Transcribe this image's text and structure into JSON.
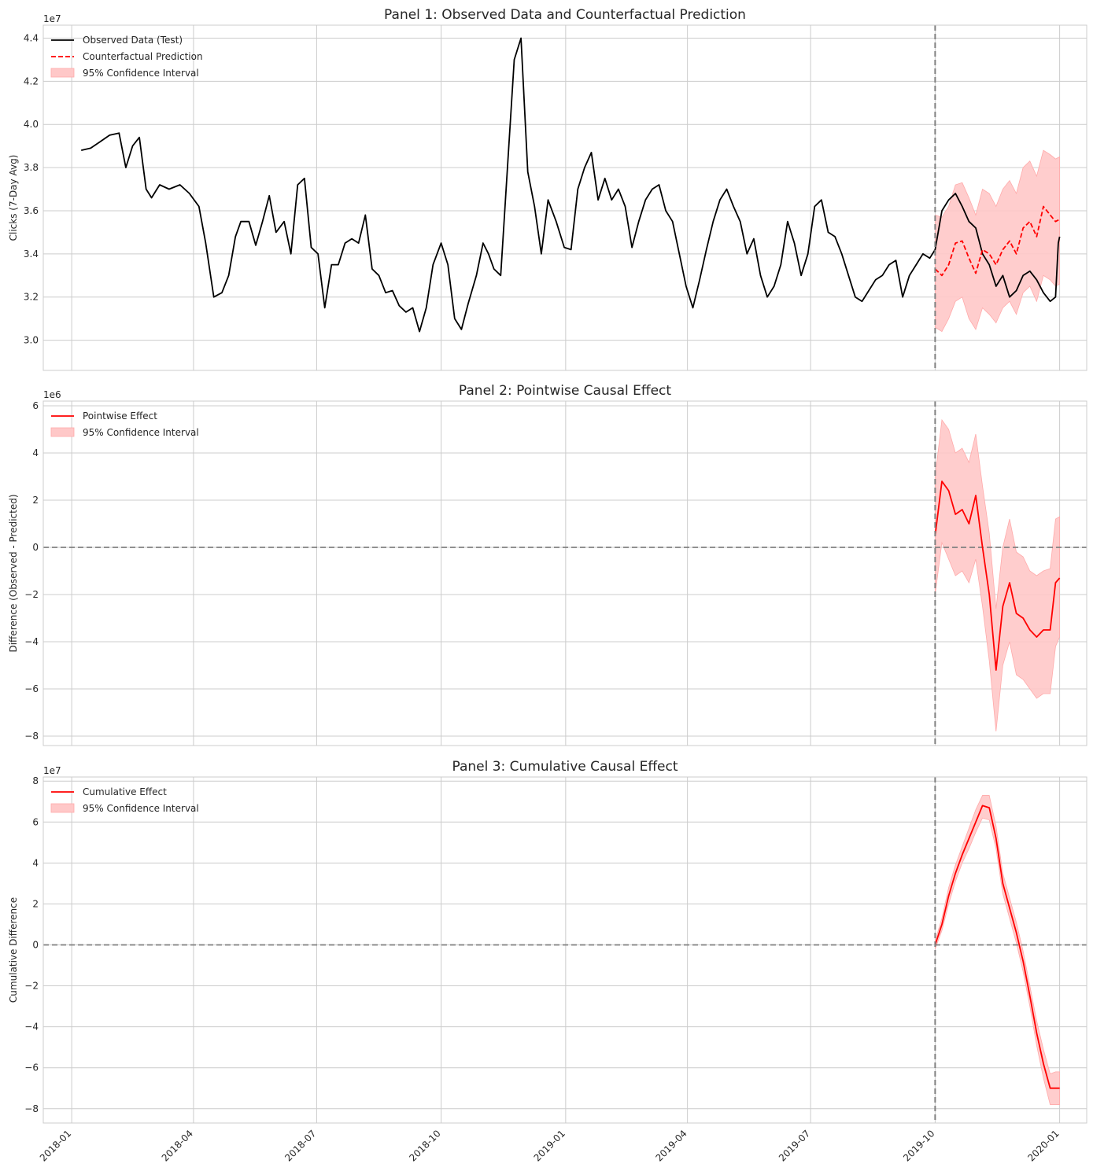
{
  "x_ticks": [
    "2018-01",
    "2018-04",
    "2018-07",
    "2018-10",
    "2019-01",
    "2019-04",
    "2019-07",
    "2019-10",
    "2020-01"
  ],
  "intervention_date": "2019-10-01",
  "chart_data": [
    {
      "type": "line",
      "title": "Panel 1: Observed Data and Counterfactual Prediction",
      "ylabel": "Clicks (7-Day Avg)",
      "scale_label": "1e7",
      "ylim": [
        2.86,
        4.46
      ],
      "yticks": [
        "3.0",
        "3.2",
        "3.4",
        "3.6",
        "3.8",
        "4.0",
        "4.2",
        "4.4"
      ],
      "ytick_values": [
        3.0,
        3.2,
        3.4,
        3.6,
        3.8,
        4.0,
        4.2,
        4.4
      ],
      "grid": true,
      "legend_position": "top-left",
      "legend": [
        "Observed Data (Test)",
        "Counterfactual Prediction",
        "95% Confidence Interval"
      ],
      "series": [
        {
          "name": "Observed Data (Test)",
          "color": "#000000",
          "style": "solid",
          "x": [
            "2018-01-08",
            "2018-01-15",
            "2018-01-22",
            "2018-01-29",
            "2018-02-05",
            "2018-02-10",
            "2018-02-15",
            "2018-02-20",
            "2018-02-25",
            "2018-03-01",
            "2018-03-07",
            "2018-03-14",
            "2018-03-22",
            "2018-03-29",
            "2018-04-05",
            "2018-04-10",
            "2018-04-16",
            "2018-04-22",
            "2018-04-27",
            "2018-05-02",
            "2018-05-06",
            "2018-05-12",
            "2018-05-17",
            "2018-05-22",
            "2018-05-27",
            "2018-06-01",
            "2018-06-07",
            "2018-06-12",
            "2018-06-17",
            "2018-06-22",
            "2018-06-27",
            "2018-07-02",
            "2018-07-07",
            "2018-07-12",
            "2018-07-17",
            "2018-07-22",
            "2018-07-27",
            "2018-08-01",
            "2018-08-06",
            "2018-08-11",
            "2018-08-16",
            "2018-08-21",
            "2018-08-26",
            "2018-08-31",
            "2018-09-05",
            "2018-09-10",
            "2018-09-15",
            "2018-09-20",
            "2018-09-25",
            "2018-10-01",
            "2018-10-06",
            "2018-10-11",
            "2018-10-16",
            "2018-10-21",
            "2018-10-27",
            "2018-11-01",
            "2018-11-05",
            "2018-11-09",
            "2018-11-14",
            "2018-11-19",
            "2018-11-24",
            "2018-11-29",
            "2018-12-04",
            "2018-12-09",
            "2018-12-14",
            "2018-12-19",
            "2018-12-25",
            "2018-12-31",
            "2019-01-05",
            "2019-01-10",
            "2019-01-15",
            "2019-01-20",
            "2019-01-25",
            "2019-01-30",
            "2019-02-04",
            "2019-02-09",
            "2019-02-14",
            "2019-02-19",
            "2019-02-24",
            "2019-03-01",
            "2019-03-06",
            "2019-03-11",
            "2019-03-16",
            "2019-03-21",
            "2019-03-26",
            "2019-03-31",
            "2019-04-05",
            "2019-04-10",
            "2019-04-15",
            "2019-04-20",
            "2019-04-25",
            "2019-04-30",
            "2019-05-05",
            "2019-05-10",
            "2019-05-15",
            "2019-05-20",
            "2019-05-25",
            "2019-05-30",
            "2019-06-04",
            "2019-06-09",
            "2019-06-14",
            "2019-06-19",
            "2019-06-24",
            "2019-06-29",
            "2019-07-04",
            "2019-07-09",
            "2019-07-14",
            "2019-07-19",
            "2019-07-24",
            "2019-07-29",
            "2019-08-03",
            "2019-08-08",
            "2019-08-13",
            "2019-08-18",
            "2019-08-23",
            "2019-08-28",
            "2019-09-02",
            "2019-09-07",
            "2019-09-12",
            "2019-09-17",
            "2019-09-22",
            "2019-09-27",
            "2019-10-01",
            "2019-10-06",
            "2019-10-11",
            "2019-10-16",
            "2019-10-21",
            "2019-10-26",
            "2019-10-31",
            "2019-11-05",
            "2019-11-10",
            "2019-11-15",
            "2019-11-20",
            "2019-11-25",
            "2019-11-30",
            "2019-12-05",
            "2019-12-10",
            "2019-12-15",
            "2019-12-20",
            "2019-12-25",
            "2019-12-29",
            "2019-12-31",
            "2020-01-01"
          ],
          "y": [
            3.88,
            3.89,
            3.92,
            3.95,
            3.96,
            3.8,
            3.9,
            3.94,
            3.7,
            3.66,
            3.72,
            3.7,
            3.72,
            3.68,
            3.62,
            3.45,
            3.2,
            3.22,
            3.3,
            3.48,
            3.55,
            3.55,
            3.44,
            3.55,
            3.67,
            3.5,
            3.55,
            3.4,
            3.72,
            3.75,
            3.43,
            3.4,
            3.15,
            3.35,
            3.35,
            3.45,
            3.47,
            3.45,
            3.58,
            3.33,
            3.3,
            3.22,
            3.23,
            3.16,
            3.13,
            3.15,
            3.04,
            3.15,
            3.35,
            3.45,
            3.35,
            3.1,
            3.05,
            3.17,
            3.3,
            3.45,
            3.4,
            3.33,
            3.3,
            3.8,
            4.3,
            4.4,
            3.78,
            3.62,
            3.4,
            3.65,
            3.55,
            3.43,
            3.42,
            3.7,
            3.8,
            3.87,
            3.65,
            3.75,
            3.65,
            3.7,
            3.62,
            3.43,
            3.55,
            3.65,
            3.7,
            3.72,
            3.6,
            3.55,
            3.4,
            3.25,
            3.15,
            3.28,
            3.42,
            3.55,
            3.65,
            3.7,
            3.62,
            3.55,
            3.4,
            3.47,
            3.3,
            3.2,
            3.25,
            3.35,
            3.55,
            3.45,
            3.3,
            3.4,
            3.62,
            3.65,
            3.5,
            3.48,
            3.4,
            3.3,
            3.2,
            3.18,
            3.23,
            3.28,
            3.3,
            3.35,
            3.37,
            3.2,
            3.3,
            3.35,
            3.4,
            3.38,
            3.42,
            3.6,
            3.65,
            3.68,
            3.62,
            3.55,
            3.52,
            3.4,
            3.35,
            3.25,
            3.3,
            3.2,
            3.23,
            3.3,
            3.32,
            3.28,
            3.22,
            3.18,
            3.2,
            3.45,
            3.48
          ]
        },
        {
          "name": "Counterfactual Prediction",
          "color": "#ff0000",
          "style": "dashed",
          "x": [
            "2019-10-01",
            "2019-10-06",
            "2019-10-11",
            "2019-10-16",
            "2019-10-21",
            "2019-10-26",
            "2019-10-31",
            "2019-11-05",
            "2019-11-10",
            "2019-11-15",
            "2019-11-20",
            "2019-11-25",
            "2019-11-30",
            "2019-12-05",
            "2019-12-10",
            "2019-12-15",
            "2019-12-20",
            "2019-12-25",
            "2019-12-29",
            "2020-01-01"
          ],
          "y": [
            3.33,
            3.3,
            3.35,
            3.45,
            3.46,
            3.38,
            3.31,
            3.42,
            3.4,
            3.35,
            3.42,
            3.46,
            3.4,
            3.52,
            3.55,
            3.48,
            3.62,
            3.58,
            3.55,
            3.56
          ]
        }
      ],
      "ci": {
        "x": [
          "2019-10-01",
          "2019-10-06",
          "2019-10-11",
          "2019-10-16",
          "2019-10-21",
          "2019-10-26",
          "2019-10-31",
          "2019-11-05",
          "2019-11-10",
          "2019-11-15",
          "2019-11-20",
          "2019-11-25",
          "2019-11-30",
          "2019-12-05",
          "2019-12-10",
          "2019-12-15",
          "2019-12-20",
          "2019-12-25",
          "2019-12-29",
          "2020-01-01"
        ],
        "lower": [
          3.06,
          3.04,
          3.1,
          3.18,
          3.2,
          3.1,
          3.05,
          3.15,
          3.12,
          3.08,
          3.15,
          3.18,
          3.12,
          3.22,
          3.25,
          3.18,
          3.3,
          3.28,
          3.25,
          3.26
        ],
        "upper": [
          3.58,
          3.57,
          3.62,
          3.72,
          3.73,
          3.66,
          3.58,
          3.7,
          3.68,
          3.62,
          3.7,
          3.74,
          3.68,
          3.8,
          3.83,
          3.76,
          3.88,
          3.86,
          3.84,
          3.85
        ]
      }
    },
    {
      "type": "line",
      "title": "Panel 2: Pointwise Causal Effect",
      "ylabel": "Difference (Observed - Predicted)",
      "scale_label": "1e6",
      "ylim": [
        -8.4,
        6.2
      ],
      "yticks": [
        "−8",
        "−6",
        "−4",
        "−2",
        "0",
        "2",
        "4",
        "6"
      ],
      "ytick_values": [
        -8,
        -6,
        -4,
        -2,
        0,
        2,
        4,
        6
      ],
      "grid": true,
      "legend_position": "top-left",
      "legend": [
        "Pointwise Effect",
        "95% Confidence Interval"
      ],
      "series": [
        {
          "name": "Pointwise Effect",
          "color": "#ff0000",
          "style": "solid",
          "x": [
            "2019-10-01",
            "2019-10-06",
            "2019-10-11",
            "2019-10-16",
            "2019-10-21",
            "2019-10-26",
            "2019-10-31",
            "2019-11-05",
            "2019-11-10",
            "2019-11-15",
            "2019-11-20",
            "2019-11-25",
            "2019-11-30",
            "2019-12-05",
            "2019-12-10",
            "2019-12-15",
            "2019-12-20",
            "2019-12-25",
            "2019-12-29",
            "2020-01-01"
          ],
          "y": [
            0.5,
            2.8,
            2.4,
            1.4,
            1.6,
            1.0,
            2.2,
            0.0,
            -2.0,
            -5.2,
            -2.5,
            -1.5,
            -2.8,
            -3.0,
            -3.5,
            -3.8,
            -3.5,
            -3.5,
            -1.5,
            -1.3
          ]
        }
      ],
      "ci": {
        "x": [
          "2019-10-01",
          "2019-10-06",
          "2019-10-11",
          "2019-10-16",
          "2019-10-21",
          "2019-10-26",
          "2019-10-31",
          "2019-11-05",
          "2019-11-10",
          "2019-11-15",
          "2019-11-20",
          "2019-11-25",
          "2019-11-30",
          "2019-12-05",
          "2019-12-10",
          "2019-12-15",
          "2019-12-20",
          "2019-12-25",
          "2019-12-29",
          "2020-01-01"
        ],
        "lower": [
          -2.0,
          0.2,
          -0.5,
          -1.2,
          -1.0,
          -1.5,
          -0.5,
          -2.5,
          -4.8,
          -7.8,
          -5.0,
          -4.0,
          -5.4,
          -5.6,
          -6.0,
          -6.4,
          -6.2,
          -6.2,
          -4.2,
          -3.8
        ],
        "upper": [
          3.0,
          5.4,
          5.0,
          4.0,
          4.2,
          3.6,
          4.8,
          2.6,
          0.6,
          -2.6,
          0.0,
          1.2,
          -0.2,
          -0.4,
          -1.0,
          -1.2,
          -1.0,
          -0.9,
          1.2,
          1.3
        ]
      }
    },
    {
      "type": "line",
      "title": "Panel 3: Cumulative Causal Effect",
      "ylabel": "Cumulative Difference",
      "scale_label": "1e7",
      "ylim": [
        -8.7,
        8.2
      ],
      "yticks": [
        "−8",
        "−6",
        "−4",
        "−2",
        "0",
        "2",
        "4",
        "6",
        "8"
      ],
      "ytick_values": [
        -8,
        -6,
        -4,
        -2,
        0,
        2,
        4,
        6,
        8
      ],
      "grid": true,
      "legend_position": "top-left",
      "legend": [
        "Cumulative Effect",
        "95% Confidence Interval"
      ],
      "series": [
        {
          "name": "Cumulative Effect",
          "color": "#ff0000",
          "style": "solid",
          "x": [
            "2019-10-01",
            "2019-10-06",
            "2019-10-11",
            "2019-10-16",
            "2019-10-21",
            "2019-10-26",
            "2019-10-31",
            "2019-11-05",
            "2019-11-10",
            "2019-11-15",
            "2019-11-20",
            "2019-11-25",
            "2019-11-30",
            "2019-12-05",
            "2019-12-10",
            "2019-12-15",
            "2019-12-20",
            "2019-12-25",
            "2019-12-29",
            "2020-01-01"
          ],
          "y": [
            0.0,
            1.0,
            2.4,
            3.5,
            4.4,
            5.2,
            6.0,
            6.8,
            6.7,
            5.2,
            3.0,
            1.8,
            0.6,
            -0.8,
            -2.5,
            -4.3,
            -5.8,
            -7.0,
            -7.0,
            -7.0
          ]
        }
      ],
      "ci": {
        "x": [
          "2019-10-01",
          "2019-10-06",
          "2019-10-11",
          "2019-10-16",
          "2019-10-21",
          "2019-10-26",
          "2019-10-31",
          "2019-11-05",
          "2019-11-10",
          "2019-11-15",
          "2019-11-20",
          "2019-11-25",
          "2019-11-30",
          "2019-12-05",
          "2019-12-10",
          "2019-12-15",
          "2019-12-20",
          "2019-12-25",
          "2019-12-29",
          "2020-01-01"
        ],
        "lower": [
          -0.2,
          0.7,
          2.0,
          3.1,
          4.0,
          4.7,
          5.5,
          6.2,
          6.1,
          4.7,
          2.5,
          1.3,
          0.1,
          -1.3,
          -3.0,
          -4.9,
          -6.5,
          -7.8,
          -7.8,
          -7.8
        ],
        "upper": [
          0.2,
          1.3,
          2.8,
          3.9,
          4.8,
          5.7,
          6.6,
          7.3,
          7.3,
          5.8,
          3.5,
          2.3,
          1.1,
          -0.3,
          -2.0,
          -3.7,
          -5.1,
          -6.3,
          -6.2,
          -6.2
        ]
      }
    }
  ],
  "colors": {
    "observed": "#000000",
    "prediction": "#ff0000",
    "ci_fill": "#ffc8c8",
    "zero_line": "#808080",
    "grid": "#cccccc"
  }
}
